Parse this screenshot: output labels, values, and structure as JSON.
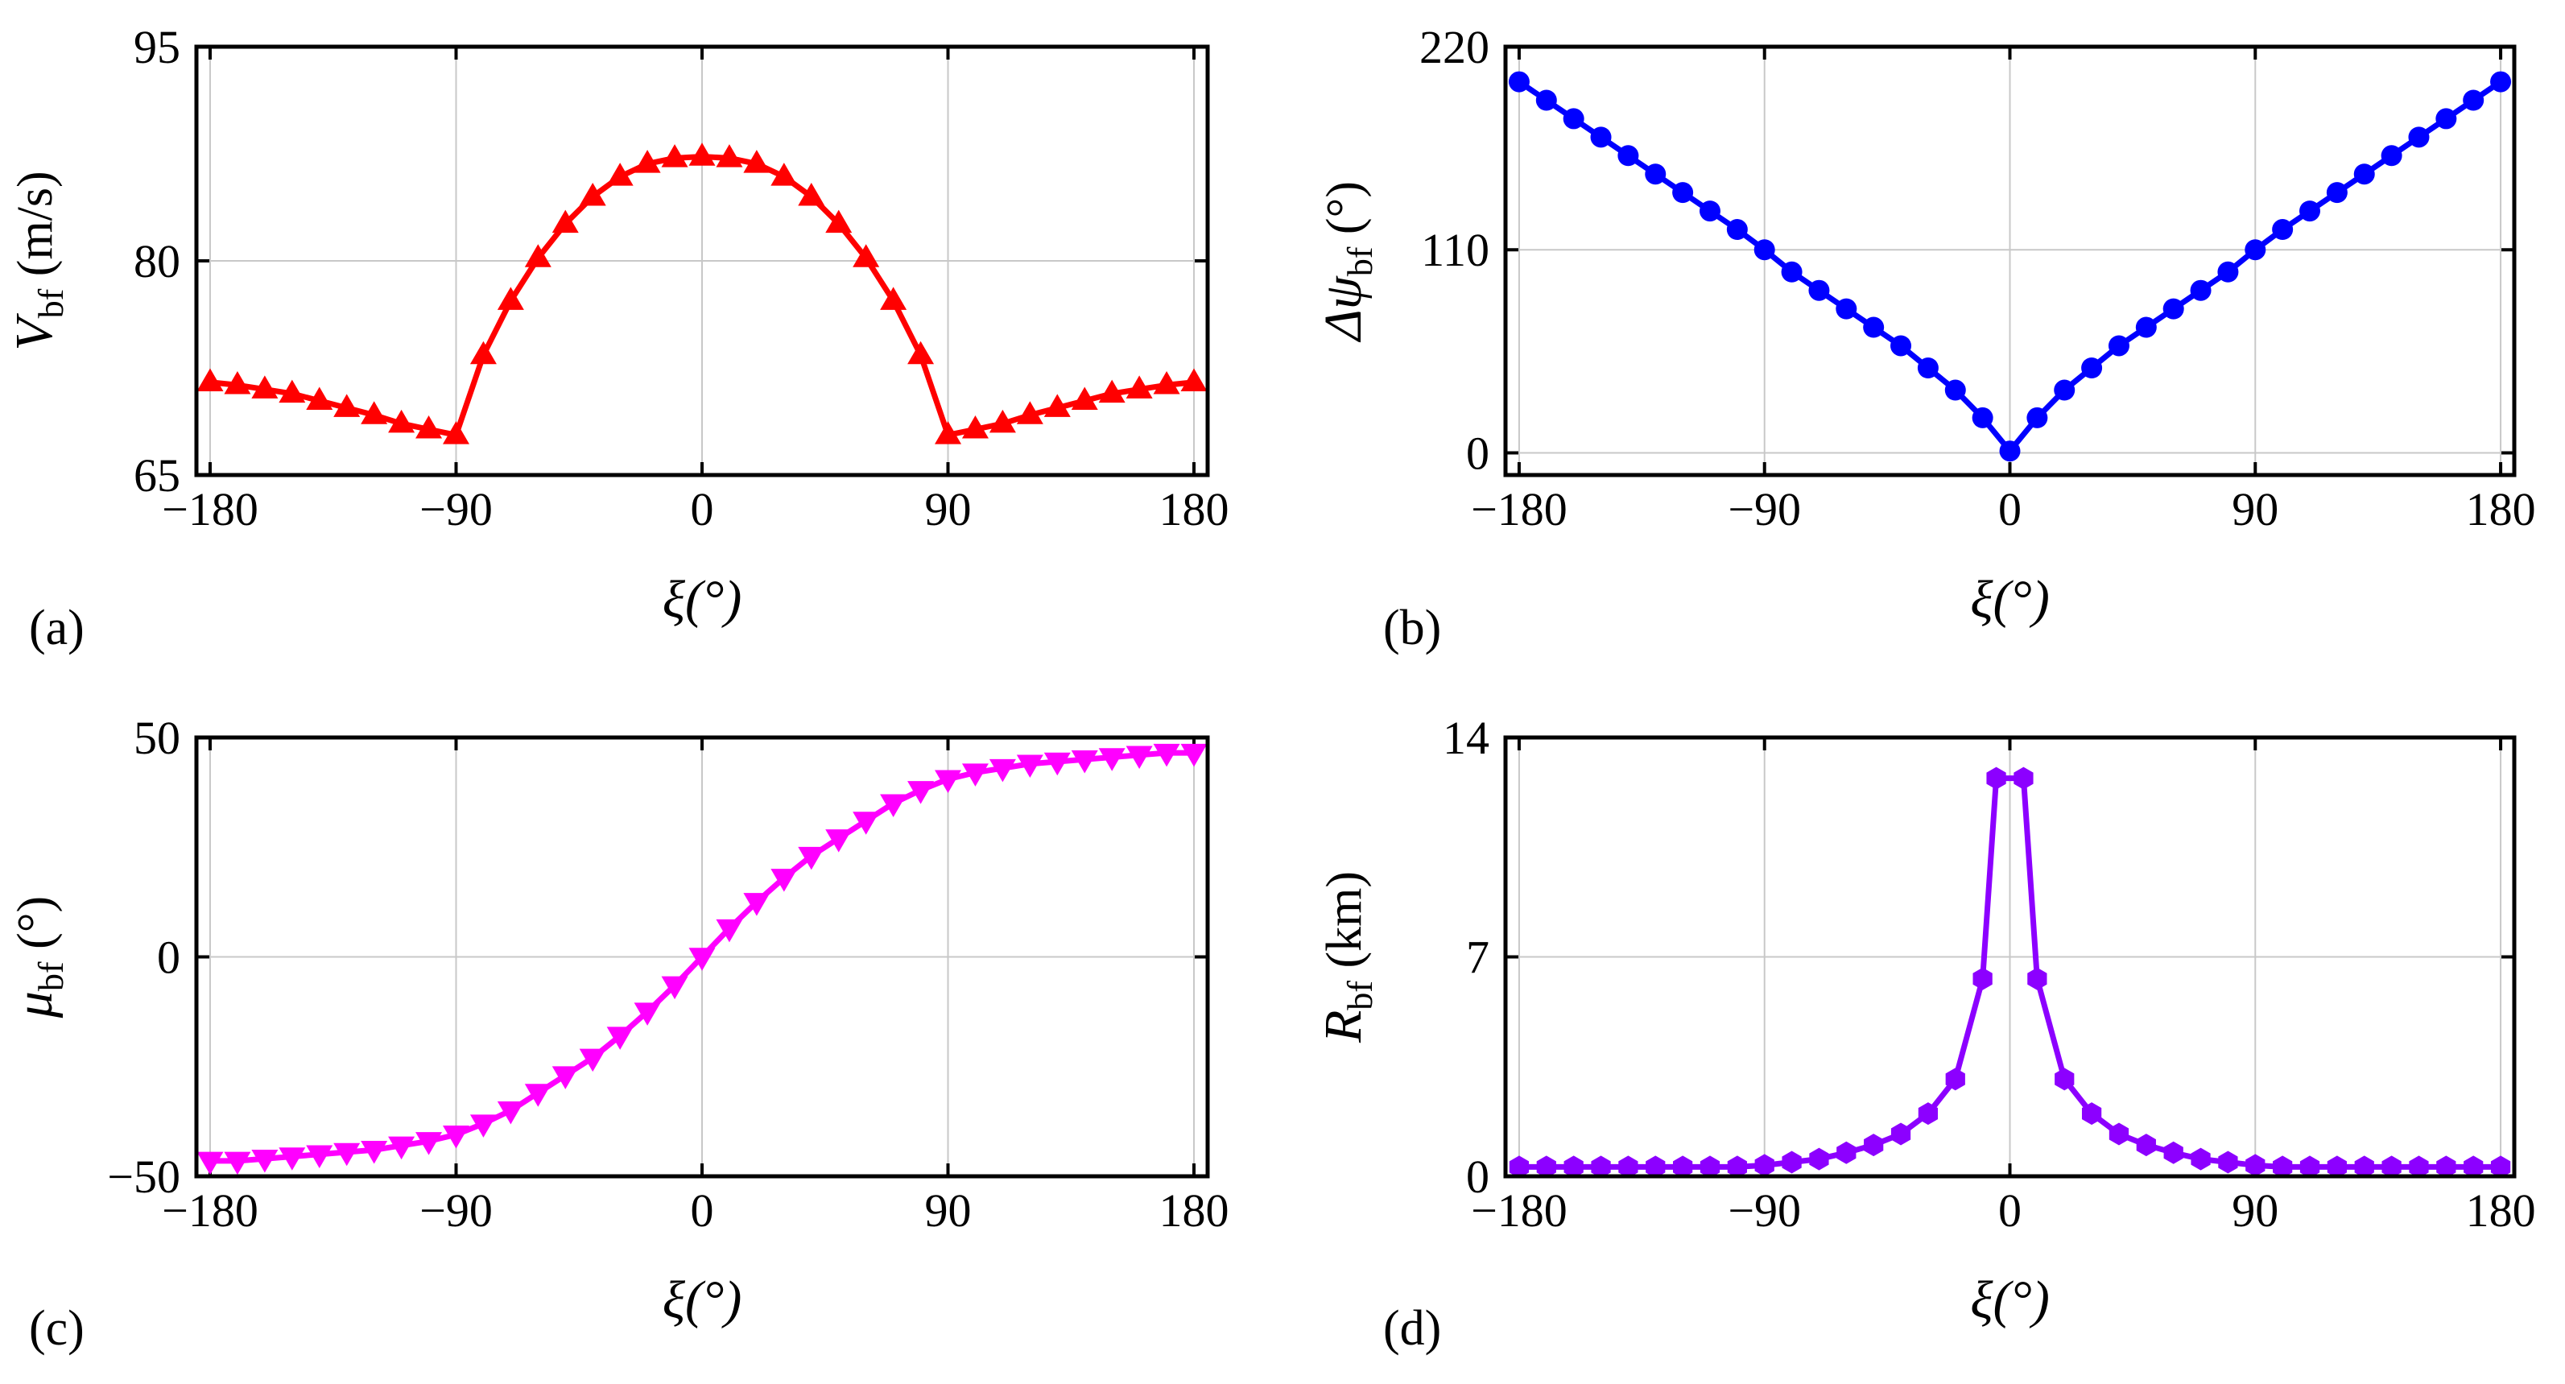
{
  "chart_data": [
    {
      "type": "line",
      "panel_label": "(a)",
      "color": "#ff0000",
      "marker": "triangle-up",
      "xlabel": "ξ(°)",
      "ylabel": {
        "symbol": "V",
        "sub": "bf",
        "unit": " (m/s)"
      },
      "xlim": [
        -185,
        185
      ],
      "ylim": [
        65,
        95
      ],
      "xticks": [
        "−180",
        "−90",
        "0",
        "90",
        "180"
      ],
      "xtick_values": [
        -180,
        -90,
        0,
        90,
        180
      ],
      "yticks": [
        "65",
        "80",
        "95"
      ],
      "ytick_values": [
        65,
        80,
        95
      ],
      "x": [
        -180,
        -170,
        -160,
        -150,
        -140,
        -130,
        -120,
        -110,
        -100,
        -90,
        -80,
        -70,
        -60,
        -50,
        -40,
        -30,
        -20,
        -10,
        0,
        10,
        20,
        30,
        40,
        50,
        60,
        70,
        80,
        90,
        100,
        110,
        120,
        130,
        140,
        150,
        160,
        170,
        180
      ],
      "y": [
        71.5,
        71.3,
        71.0,
        70.7,
        70.2,
        69.7,
        69.2,
        68.6,
        68.2,
        67.8,
        73.4,
        77.2,
        80.2,
        82.6,
        84.5,
        85.9,
        86.8,
        87.2,
        87.3,
        87.2,
        86.8,
        85.9,
        84.5,
        82.6,
        80.2,
        77.2,
        73.4,
        67.8,
        68.2,
        68.6,
        69.2,
        69.7,
        70.2,
        70.7,
        71.0,
        71.3,
        71.5
      ]
    },
    {
      "type": "line",
      "panel_label": "(b)",
      "color": "#0000ff",
      "marker": "circle",
      "xlabel": "ξ(°)",
      "ylabel": {
        "symbol": "Δψ",
        "sub": "bf",
        "unit": " (°)"
      },
      "xlim": [
        -185,
        185
      ],
      "ylim": [
        -12,
        220
      ],
      "xticks": [
        "−180",
        "−90",
        "0",
        "90",
        "180"
      ],
      "xtick_values": [
        -180,
        -90,
        0,
        90,
        180
      ],
      "yticks": [
        "0",
        "110",
        "220"
      ],
      "ytick_values": [
        0,
        110,
        220
      ],
      "x": [
        -180,
        -170,
        -160,
        -150,
        -140,
        -130,
        -120,
        -110,
        -100,
        -90,
        -80,
        -70,
        -60,
        -50,
        -40,
        -30,
        -20,
        -10,
        0,
        10,
        20,
        30,
        40,
        50,
        60,
        70,
        80,
        90,
        100,
        110,
        120,
        130,
        140,
        150,
        160,
        170,
        180
      ],
      "y": [
        201,
        191,
        181,
        171,
        161,
        151,
        141,
        131,
        121,
        110,
        98,
        88,
        78,
        68,
        58,
        46,
        34,
        19,
        1,
        19,
        34,
        46,
        58,
        68,
        78,
        88,
        98,
        110,
        121,
        131,
        141,
        151,
        161,
        171,
        181,
        191,
        201
      ]
    },
    {
      "type": "line",
      "panel_label": "(c)",
      "color": "#ff00ff",
      "marker": "triangle-down",
      "xlabel": "ξ(°)",
      "ylabel": {
        "symbol": "μ",
        "sub": "bf",
        "unit": " (°)"
      },
      "xlim": [
        -185,
        185
      ],
      "ylim": [
        -50,
        50
      ],
      "xticks": [
        "−180",
        "−90",
        "0",
        "90",
        "180"
      ],
      "xtick_values": [
        -180,
        -90,
        0,
        90,
        180
      ],
      "yticks": [
        "−50",
        "0",
        "50"
      ],
      "ytick_values": [
        -50,
        0,
        50
      ],
      "x": [
        -180,
        -170,
        -160,
        -150,
        -140,
        -130,
        -120,
        -110,
        -100,
        -90,
        -80,
        -70,
        -60,
        -50,
        -40,
        -30,
        -20,
        -10,
        0,
        10,
        20,
        30,
        40,
        50,
        60,
        70,
        80,
        90,
        100,
        110,
        120,
        130,
        140,
        150,
        160,
        170,
        180
      ],
      "y": [
        -46.5,
        -46.5,
        -46,
        -45.5,
        -45,
        -44.5,
        -44,
        -43,
        -42,
        -40.5,
        -38,
        -35,
        -31,
        -27,
        -23,
        -18,
        -12.5,
        -6.5,
        0,
        6.5,
        12.5,
        18,
        23,
        27,
        31,
        35,
        38,
        40.5,
        42,
        43,
        44,
        44.5,
        45,
        45.5,
        46,
        46.5,
        46.5
      ]
    },
    {
      "type": "line",
      "panel_label": "(d)",
      "color": "#8c00ff",
      "marker": "hexagon",
      "xlabel": "ξ(°)",
      "ylabel": {
        "symbol": "R",
        "sub": "bf",
        "unit": " (km)"
      },
      "xlim": [
        -185,
        185
      ],
      "ylim": [
        0,
        14
      ],
      "xticks": [
        "−180",
        "−90",
        "0",
        "90",
        "180"
      ],
      "xtick_values": [
        -180,
        -90,
        0,
        90,
        180
      ],
      "yticks": [
        "0",
        "7",
        "14"
      ],
      "ytick_values": [
        0,
        7,
        14
      ],
      "x": [
        -180,
        -170,
        -160,
        -150,
        -140,
        -130,
        -120,
        -110,
        -100,
        -90,
        -80,
        -70,
        -60,
        -50,
        -40,
        -30,
        -20,
        -10,
        -5,
        5,
        10,
        20,
        30,
        40,
        50,
        60,
        70,
        80,
        90,
        100,
        110,
        120,
        130,
        140,
        150,
        160,
        170,
        180
      ],
      "y": [
        0.3,
        0.3,
        0.3,
        0.3,
        0.3,
        0.3,
        0.3,
        0.3,
        0.3,
        0.35,
        0.45,
        0.55,
        0.75,
        1.0,
        1.35,
        2.0,
        3.1,
        6.3,
        12.7,
        12.7,
        6.3,
        3.1,
        2.0,
        1.35,
        1.0,
        0.75,
        0.55,
        0.45,
        0.35,
        0.3,
        0.3,
        0.3,
        0.3,
        0.3,
        0.3,
        0.3,
        0.3,
        0.3
      ]
    }
  ]
}
